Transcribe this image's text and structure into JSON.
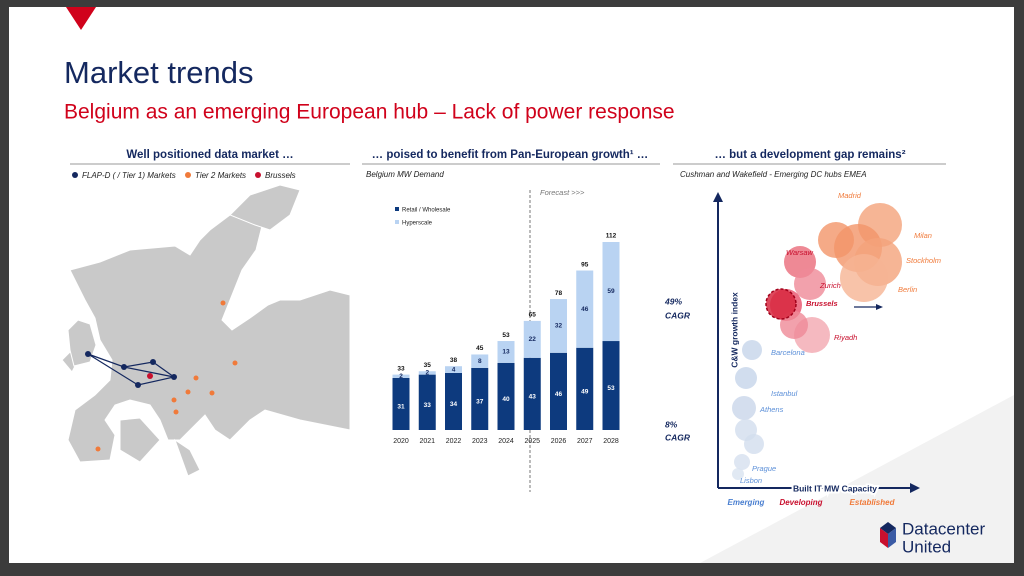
{
  "header": {
    "title": "Market trends",
    "subtitle": "Belgium as an emerging European hub – Lack of power response"
  },
  "sections": [
    "Well positioned data market …",
    "… poised to benefit from Pan-European growth¹ …",
    "… but a development gap remains²"
  ],
  "map": {
    "legend": [
      {
        "name": "FLAP-D ( / Tier 1) Markets",
        "color": "#14285f"
      },
      {
        "name": "Tier 2 Markets",
        "color": "#f07a3a"
      },
      {
        "name": "Brussels",
        "color": "#c8102e"
      }
    ]
  },
  "chart_data": {
    "type": "bar",
    "stacked": true,
    "subtitle": "Belgium MW Demand",
    "annotation": "Forecast >>>",
    "categories": [
      "2020",
      "2021",
      "2022",
      "2023",
      "2024",
      "2025",
      "2026",
      "2027",
      "2028"
    ],
    "series": [
      {
        "name": "Retail / Wholesale",
        "color": "#0d3a7e",
        "values": [
          31,
          33,
          34,
          37,
          40,
          43,
          46,
          49,
          53
        ]
      },
      {
        "name": "Hyperscale",
        "color": "#b9d3f2",
        "values": [
          2,
          2,
          4,
          8,
          13,
          22,
          32,
          46,
          59
        ]
      }
    ],
    "totals": [
      33,
      35,
      38,
      45,
      53,
      65,
      78,
      95,
      112
    ],
    "cagr": [
      {
        "rate": "49%",
        "label": "CAGR"
      },
      {
        "rate": "8%",
        "label": "CAGR"
      }
    ]
  },
  "bubble": {
    "subtitle": "Cushman and Wakefield - Emerging  DC hubs EMEA",
    "y_label": "C&W growth index",
    "x_label": "Built IT MW Capacity",
    "stages": [
      "Emerging",
      "Developing",
      "Established"
    ],
    "labels": [
      "Madrid",
      "Milan",
      "Stockholm",
      "Berlin",
      "Warsaw",
      "Zurich",
      "Brussels",
      "Riyadh",
      "Barcelona",
      "Istanbul",
      "Athens",
      "Prague",
      "Lisbon"
    ]
  },
  "logo": {
    "line1": "Datacenter",
    "line2": "United"
  }
}
